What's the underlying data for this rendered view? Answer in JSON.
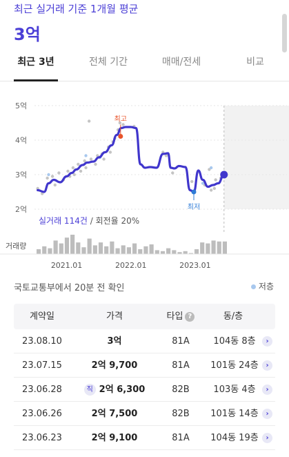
{
  "header": {
    "subtitle": "최근 실거래 기준 1개월 평균",
    "price": "3억"
  },
  "tabs": [
    {
      "label": "최근 3년",
      "active": true
    },
    {
      "label": "전체 기간",
      "active": false
    },
    {
      "label": "매매/전세",
      "active": false
    },
    {
      "label": "비교",
      "active": false
    }
  ],
  "chart_data": {
    "type": "line",
    "y_tick_labels": [
      "5억",
      "4억",
      "3억",
      "2억"
    ],
    "y_ticks": [
      5,
      4,
      3,
      2
    ],
    "ylim": [
      2,
      5
    ],
    "x_tick_labels": [
      "2021.01",
      "2022.01",
      "2023.01"
    ],
    "x_ticks": [
      2021.0,
      2022.0,
      2023.0
    ],
    "xlim": [
      2020.5,
      2024.0
    ],
    "series": [
      {
        "values": [
          [
            2020.55,
            2.55
          ],
          [
            2020.65,
            2.5
          ],
          [
            2020.72,
            2.75
          ],
          [
            2020.8,
            2.85
          ],
          [
            2020.9,
            2.78
          ],
          [
            2021.0,
            2.95
          ],
          [
            2021.08,
            3.05
          ],
          [
            2021.15,
            3.15
          ],
          [
            2021.25,
            3.28
          ],
          [
            2021.32,
            3.35
          ],
          [
            2021.42,
            3.38
          ],
          [
            2021.5,
            3.5
          ],
          [
            2021.6,
            3.65
          ],
          [
            2021.7,
            3.85
          ],
          [
            2021.78,
            4.15
          ],
          [
            2021.85,
            4.35
          ],
          [
            2021.92,
            4.38
          ],
          [
            2022.0,
            4.38
          ],
          [
            2022.08,
            4.35
          ],
          [
            2022.15,
            3.3
          ],
          [
            2022.22,
            3.2
          ],
          [
            2022.3,
            3.22
          ],
          [
            2022.4,
            3.2
          ],
          [
            2022.5,
            3.6
          ],
          [
            2022.58,
            3.62
          ],
          [
            2022.62,
            3.2
          ],
          [
            2022.68,
            3.18
          ],
          [
            2022.75,
            3.25
          ],
          [
            2022.85,
            3.22
          ],
          [
            2022.92,
            2.55
          ],
          [
            2022.98,
            2.5
          ],
          [
            2023.05,
            3.12
          ],
          [
            2023.12,
            2.85
          ],
          [
            2023.2,
            2.65
          ],
          [
            2023.28,
            2.7
          ],
          [
            2023.36,
            2.75
          ],
          [
            2023.45,
            3.0
          ]
        ]
      }
    ],
    "scatter_points": [
      [
        2020.55,
        2.6
      ],
      [
        2020.62,
        2.45
      ],
      [
        2020.7,
        2.9
      ],
      [
        2020.78,
        2.95
      ],
      [
        2020.82,
        2.7
      ],
      [
        2020.88,
        3.05
      ],
      [
        2020.95,
        2.85
      ],
      [
        2021.02,
        3.1
      ],
      [
        2021.05,
        2.95
      ],
      [
        2021.1,
        3.2
      ],
      [
        2021.12,
        3.0
      ],
      [
        2021.18,
        3.3
      ],
      [
        2021.22,
        3.1
      ],
      [
        2021.28,
        3.4
      ],
      [
        2021.3,
        3.2
      ],
      [
        2021.35,
        4.55
      ],
      [
        2021.38,
        3.45
      ],
      [
        2021.45,
        3.3
      ],
      [
        2021.48,
        3.55
      ],
      [
        2021.55,
        3.6
      ],
      [
        2021.58,
        3.45
      ],
      [
        2021.65,
        3.8
      ],
      [
        2021.68,
        3.65
      ],
      [
        2021.72,
        3.95
      ],
      [
        2021.75,
        4.05
      ],
      [
        2021.8,
        4.3
      ],
      [
        2021.83,
        4.5
      ],
      [
        2021.88,
        4.45
      ],
      [
        2022.05,
        4.4
      ],
      [
        2022.5,
        3.65
      ],
      [
        2022.55,
        3.55
      ],
      [
        2022.65,
        3.05
      ],
      [
        2022.95,
        2.8
      ],
      [
        2023.15,
        2.7
      ],
      [
        2023.22,
        3.15
      ],
      [
        2023.25,
        2.55
      ],
      [
        2023.3,
        2.6
      ],
      [
        2023.32,
        2.85
      ],
      [
        2023.4,
        2.9
      ]
    ],
    "low_floor_points": [
      [
        2020.72,
        3.0
      ],
      [
        2021.3,
        3.55
      ],
      [
        2021.52,
        3.5
      ],
      [
        2023.25,
        3.2
      ],
      [
        2023.12,
        2.75
      ]
    ],
    "max_marker": {
      "x": 2021.84,
      "y": 4.55,
      "label": "최고"
    },
    "min_marker": {
      "x": 2022.98,
      "y": 2.5,
      "label": "최저"
    },
    "current_marker": {
      "x": 2023.45,
      "y": 3.0
    },
    "forecast_start": 2023.45,
    "volume": [
      5,
      8,
      6,
      14,
      11,
      17,
      20,
      12,
      7,
      16,
      9,
      12,
      8,
      13,
      6,
      9,
      7,
      11,
      5,
      8,
      10,
      4,
      3,
      6,
      4,
      2,
      3,
      1,
      5,
      12,
      11,
      14,
      13,
      13
    ],
    "grid": true,
    "colors": {
      "line": "#4036cc",
      "scatter": "#c4c4c4",
      "low_floor": "#a8c8ee",
      "max": "#e8542a",
      "min": "#2e7bd6",
      "forecast_bg": "#f2f2f2",
      "bar": "#bdbdbd"
    }
  },
  "legend_note": {
    "accent": "실거래 114건",
    "rest": " / 회전율 20%"
  },
  "volume_label": "거래량",
  "source_text": "국토교통부에서 20분 전 확인",
  "low_floor_label": "저층",
  "table": {
    "headers": {
      "date": "계약일",
      "price": "가격",
      "type": "타입",
      "floor": "동/층"
    },
    "help_icon": "?",
    "rows": [
      {
        "date": "23.08.10",
        "price": "3억",
        "direct": false,
        "type": "81A",
        "floor": "104동 8층"
      },
      {
        "date": "23.07.15",
        "price": "2억 9,700",
        "direct": false,
        "type": "81A",
        "floor": "101동 24층"
      },
      {
        "date": "23.06.28",
        "price": "2억 6,300",
        "direct": true,
        "type": "82B",
        "floor": "103동 4층"
      },
      {
        "date": "23.06.26",
        "price": "2억 7,500",
        "direct": false,
        "type": "82B",
        "floor": "101동 14층"
      },
      {
        "date": "23.06.23",
        "price": "2억 9,100",
        "direct": false,
        "type": "81A",
        "floor": "104동 19층"
      }
    ],
    "direct_badge": "직",
    "chevron": "›"
  }
}
